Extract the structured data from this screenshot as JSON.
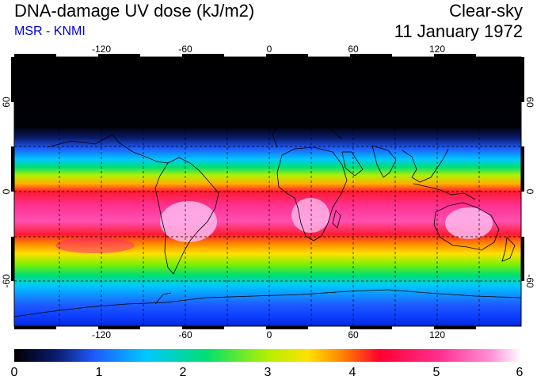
{
  "header": {
    "title": "DNA-damage UV dose (kJ/m2)",
    "source": "MSR - KNMI",
    "condition": "Clear-sky",
    "date": "11 January 1972"
  },
  "colors": {
    "source_text": "#0000dd",
    "scale": [
      "#000000",
      "#0a1a6a",
      "#1e5cff",
      "#00c8ff",
      "#00e070",
      "#b4f000",
      "#ffe000",
      "#ff8000",
      "#ff0030",
      "#ff3090",
      "#ff90d8",
      "#ffffff"
    ]
  },
  "map": {
    "lon_ticks": [
      "-120",
      "-60",
      "0",
      "60",
      "120"
    ],
    "lat_ticks": [
      "60",
      "0",
      "-60"
    ],
    "lon_range": [
      -180,
      180
    ],
    "lat_range": [
      -90,
      90
    ]
  },
  "colorbar": {
    "labels": [
      "0",
      "1",
      "2",
      "3",
      "4",
      "5",
      "6"
    ],
    "range": [
      0,
      6
    ],
    "units": "kJ/m2"
  }
}
